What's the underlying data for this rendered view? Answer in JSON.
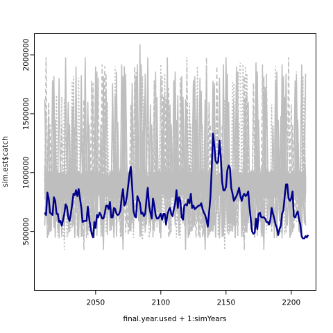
{
  "chart_data": {
    "type": "line",
    "title": "",
    "xlabel": "final.year.used + 1:simYears",
    "ylabel": "sim.est$catch",
    "xlim": [
      2003,
      2219
    ],
    "ylim": [
      0,
      2180000
    ],
    "x_ticks": [
      2050,
      2100,
      2150,
      2200
    ],
    "x_tick_labels": [
      "2050",
      "2100",
      "2150",
      "2200"
    ],
    "y_ticks": [
      500000,
      1000000,
      1500000,
      2000000
    ],
    "y_tick_labels": [
      "500000",
      "1000000",
      "1500000",
      "2000000"
    ],
    "x_start": 2011,
    "x_end": 2211,
    "grid": false,
    "legend": "none",
    "colors": {
      "simulations": "#bebebe",
      "highlight": "#00008b",
      "axes": "#000000"
    },
    "series": [
      {
        "role": "highlight",
        "style": "solid",
        "values": [
          660000,
          640000,
          830000,
          780000,
          660000,
          650000,
          640000,
          790000,
          760000,
          650000,
          650000,
          580000,
          590000,
          550000,
          600000,
          650000,
          730000,
          710000,
          620000,
          590000,
          650000,
          730000,
          820000,
          810000,
          850000,
          800000,
          860000,
          780000,
          700000,
          580000,
          590000,
          590000,
          590000,
          710000,
          620000,
          540000,
          480000,
          450000,
          580000,
          530000,
          640000,
          620000,
          660000,
          640000,
          610000,
          610000,
          650000,
          720000,
          720000,
          690000,
          750000,
          620000,
          620000,
          700000,
          690000,
          650000,
          640000,
          650000,
          680000,
          790000,
          860000,
          720000,
          740000,
          800000,
          890000,
          990000,
          1050000,
          880000,
          680000,
          630000,
          620000,
          800000,
          770000,
          740000,
          650000,
          660000,
          630000,
          650000,
          770000,
          870000,
          720000,
          660000,
          610000,
          780000,
          720000,
          640000,
          610000,
          610000,
          630000,
          650000,
          600000,
          650000,
          650000,
          560000,
          640000,
          680000,
          700000,
          650000,
          630000,
          690000,
          740000,
          850000,
          700000,
          790000,
          760000,
          620000,
          600000,
          720000,
          730000,
          720000,
          770000,
          740000,
          820000,
          700000,
          720000,
          690000,
          700000,
          710000,
          720000,
          720000,
          740000,
          690000,
          660000,
          640000,
          600000,
          540000,
          660000,
          790000,
          1020000,
          1330000,
          1230000,
          1100000,
          1080000,
          1090000,
          1270000,
          1130000,
          920000,
          850000,
          850000,
          880000,
          1020000,
          1060000,
          1040000,
          870000,
          820000,
          760000,
          780000,
          800000,
          830000,
          870000,
          800000,
          760000,
          800000,
          820000,
          800000,
          810000,
          840000,
          710000,
          600000,
          500000,
          480000,
          490000,
          610000,
          520000,
          650000,
          660000,
          620000,
          620000,
          620000,
          610000,
          580000,
          580000,
          560000,
          600000,
          700000,
          650000,
          610000,
          560000,
          530000,
          470000,
          520000,
          550000,
          650000,
          680000,
          800000,
          900000,
          900000,
          780000,
          760000,
          780000,
          840000,
          630000,
          620000,
          650000,
          670000,
          600000,
          560000,
          460000,
          440000,
          440000,
          460000,
          450000,
          470000
        ]
      }
    ]
  }
}
